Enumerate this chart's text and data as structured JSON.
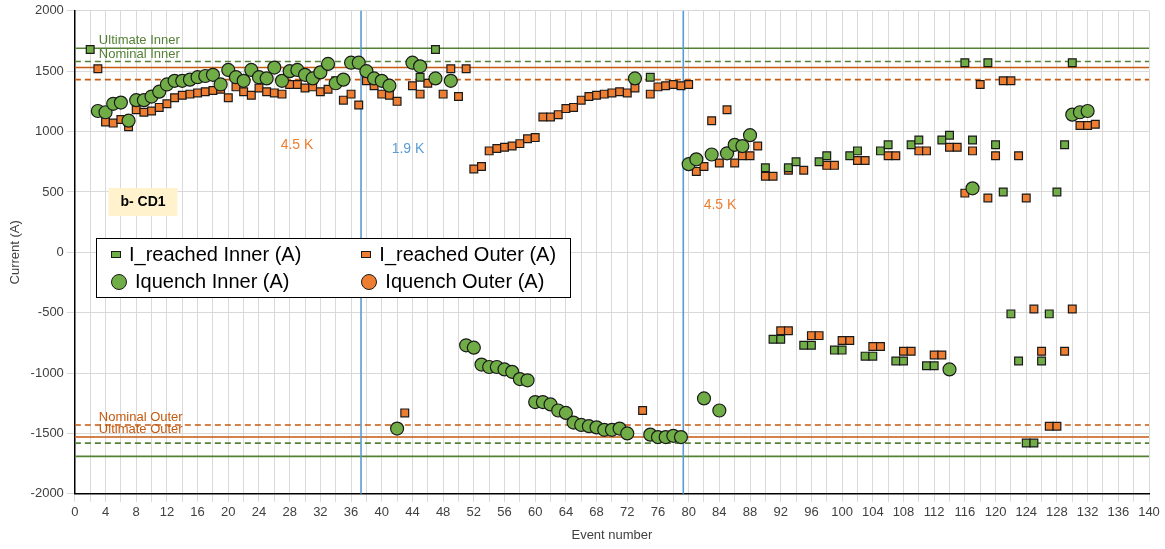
{
  "chart_data": {
    "type": "scatter",
    "xlabel": "Event number",
    "ylabel": "Current (A)",
    "xlim": [
      0,
      140
    ],
    "ylim": [
      -2000,
      2000
    ],
    "xticks": [
      0,
      {
        "value": 2,
        "label": null
      },
      4,
      {
        "value": 6,
        "label": null
      },
      8,
      {
        "value": 10,
        "label": null
      },
      12,
      {
        "value": 14,
        "label": null
      },
      16,
      {
        "value": 18,
        "label": null
      },
      20,
      {
        "value": 22,
        "label": null
      },
      24,
      {
        "value": 26,
        "label": null
      },
      28,
      {
        "value": 30,
        "label": null
      },
      32,
      {
        "value": 34,
        "label": null
      },
      36,
      {
        "value": 38,
        "label": null
      },
      40,
      {
        "value": 42,
        "label": null
      },
      44,
      {
        "value": 46,
        "label": null
      },
      48,
      {
        "value": 50,
        "label": null
      },
      52,
      {
        "value": 54,
        "label": null
      },
      56,
      {
        "value": 58,
        "label": null
      },
      60,
      {
        "value": 62,
        "label": null
      },
      64,
      {
        "value": 66,
        "label": null
      },
      68,
      {
        "value": 70,
        "label": null
      },
      72,
      {
        "value": 74,
        "label": null
      },
      76,
      {
        "value": 78,
        "label": null
      },
      80,
      {
        "value": 82,
        "label": null
      },
      84,
      {
        "value": 86,
        "label": null
      },
      88,
      {
        "value": 90,
        "label": null
      },
      92,
      {
        "value": 94,
        "label": null
      },
      96,
      {
        "value": 98,
        "label": null
      },
      100,
      {
        "value": 102,
        "label": null
      },
      104,
      {
        "value": 106,
        "label": null
      },
      108,
      {
        "value": 110,
        "label": null
      },
      112,
      {
        "value": 114,
        "label": null
      },
      116,
      {
        "value": 118,
        "label": null
      },
      120,
      {
        "value": 122,
        "label": null
      },
      124,
      {
        "value": 126,
        "label": null
      },
      128,
      {
        "value": 130,
        "label": null
      },
      132,
      {
        "value": 134,
        "label": null
      },
      136,
      {
        "value": 138,
        "label": null
      },
      140
    ],
    "yticks": [
      -2000,
      -1500,
      -1000,
      -500,
      0,
      500,
      1000,
      1500,
      2000
    ],
    "grid": true,
    "legend": "left",
    "series": [
      {
        "name": "I_reached Inner (A)",
        "color": "#70ad47",
        "marker": "square",
        "x": [
          2,
          45,
          47,
          75,
          90,
          91,
          92,
          93,
          94,
          95,
          96,
          97,
          98,
          99,
          100,
          101,
          102,
          103,
          104,
          105,
          106,
          107,
          108,
          109,
          110,
          111,
          112,
          113,
          114,
          116,
          117,
          119,
          120,
          121,
          122,
          123,
          124,
          125,
          126,
          127,
          128,
          129,
          130
        ],
        "values": [
          1680,
          1450,
          1680,
          1450,
          700,
          -720,
          -720,
          700,
          750,
          -770,
          -770,
          750,
          800,
          -810,
          -810,
          800,
          840,
          -860,
          -860,
          840,
          890,
          -900,
          -900,
          890,
          930,
          -940,
          -940,
          930,
          970,
          1570,
          930,
          1570,
          890,
          500,
          -510,
          -900,
          -1580,
          -1580,
          -900,
          -510,
          500,
          890,
          1570
        ]
      },
      {
        "name": "I_reached Outer (A)",
        "color": "#ed7d31",
        "marker": "square",
        "x": [
          3,
          4,
          5,
          6,
          7,
          8,
          9,
          10,
          11,
          12,
          13,
          14,
          15,
          16,
          17,
          18,
          19,
          20,
          21,
          22,
          23,
          24,
          25,
          26,
          27,
          28,
          29,
          30,
          31,
          32,
          33,
          34,
          35,
          36,
          37,
          38,
          39,
          40,
          41,
          42,
          43,
          44,
          45,
          46,
          48,
          49,
          50,
          51,
          52,
          53,
          54,
          55,
          56,
          57,
          58,
          59,
          60,
          61,
          62,
          63,
          64,
          65,
          66,
          67,
          68,
          69,
          70,
          71,
          72,
          73,
          74,
          75,
          76,
          77,
          78,
          79,
          80,
          81,
          82,
          83,
          84,
          85,
          86,
          87,
          88,
          89,
          90,
          91,
          92,
          93,
          93,
          95,
          96,
          97,
          98,
          99,
          100,
          101,
          102,
          103,
          104,
          105,
          106,
          107,
          108,
          109,
          110,
          111,
          112,
          113,
          114,
          115,
          116,
          117,
          118,
          119,
          120,
          121,
          122,
          123,
          124,
          125,
          126,
          127,
          128,
          129,
          130,
          131,
          132,
          133
        ],
        "values": [
          1520,
          1080,
          1070,
          1100,
          1040,
          1180,
          1160,
          1170,
          1200,
          1230,
          1280,
          1300,
          1310,
          1320,
          1330,
          1340,
          1350,
          1280,
          1370,
          1330,
          1300,
          1360,
          1330,
          1320,
          1310,
          1390,
          1390,
          1360,
          1370,
          1330,
          1350,
          1420,
          1260,
          1310,
          1220,
          1420,
          1380,
          1310,
          1300,
          1250,
          -1330,
          1380,
          1310,
          1400,
          1310,
          1520,
          1290,
          1520,
          690,
          710,
          840,
          860,
          870,
          880,
          900,
          940,
          950,
          1120,
          1120,
          1140,
          1190,
          1200,
          1260,
          1290,
          1300,
          1310,
          1320,
          1330,
          1320,
          1360,
          -1310,
          1310,
          1370,
          1380,
          1390,
          1380,
          1390,
          670,
          710,
          1090,
          740,
          1180,
          740,
          800,
          800,
          880,
          630,
          630,
          -650,
          -650,
          680,
          680,
          -690,
          -690,
          720,
          720,
          -730,
          -730,
          760,
          760,
          -780,
          -780,
          800,
          800,
          -820,
          -820,
          840,
          840,
          -850,
          -850,
          870,
          870,
          490,
          840,
          1390,
          450,
          800,
          1420,
          1420,
          800,
          450,
          -470,
          -820,
          -1440,
          -1440,
          -820,
          -470,
          1050,
          1050,
          1060
        ]
      },
      {
        "name": "Iquench Inner (A)",
        "color": "#70ad47",
        "marker": "circle",
        "x": [
          3,
          4,
          5,
          6,
          7,
          8,
          9,
          10,
          11,
          12,
          13,
          14,
          15,
          16,
          17,
          18,
          19,
          20,
          21,
          22,
          23,
          24,
          25,
          26,
          27,
          28,
          29,
          30,
          31,
          32,
          33,
          34,
          35,
          36,
          37,
          38,
          39,
          40,
          41,
          42,
          44,
          45,
          47,
          49,
          51,
          52,
          53,
          54,
          55,
          56,
          57,
          58,
          59,
          60,
          61,
          62,
          63,
          64,
          65,
          66,
          67,
          68,
          69,
          70,
          71,
          72,
          73,
          75,
          76,
          77,
          78,
          79,
          80,
          81,
          82,
          83,
          84,
          85,
          86,
          87,
          88,
          114,
          117,
          130,
          131,
          132
        ],
        "values": [
          1170,
          1160,
          1230,
          1240,
          1090,
          1260,
          1260,
          1290,
          1330,
          1390,
          1420,
          1420,
          1430,
          1450,
          1460,
          1470,
          1390,
          1510,
          1450,
          1420,
          1510,
          1450,
          1440,
          1530,
          1420,
          1500,
          1510,
          1470,
          1440,
          1490,
          1560,
          1400,
          1430,
          1570,
          1570,
          1500,
          1440,
          1420,
          1380,
          -1460,
          1570,
          1540,
          1440,
          1420,
          -770,
          -790,
          -930,
          -950,
          -950,
          -970,
          -990,
          -1050,
          -1060,
          -1240,
          -1240,
          -1260,
          -1310,
          -1330,
          -1410,
          -1430,
          -1440,
          -1450,
          -1470,
          -1470,
          -1460,
          -1500,
          1440,
          -1510,
          -1530,
          -1530,
          -1520,
          -1530,
          730,
          770,
          -1210,
          810,
          -1310,
          820,
          890,
          880,
          970,
          -970,
          530,
          1140,
          1160,
          1170
        ]
      },
      {
        "name": "Iquench Outer (A)",
        "color": "#ed7d31",
        "marker": "circle"
      }
    ],
    "ref_lines": [
      {
        "axis": "y",
        "value": 1690,
        "label": "Ultimate Inner",
        "color": "#548235",
        "line_style": "solid"
      },
      {
        "axis": "y",
        "value": 1580,
        "label": "Nominal Inner",
        "color": "#548235",
        "line_style": "dashed"
      },
      {
        "axis": "y",
        "value": 1530,
        "color": "#c55a11",
        "line_style": "solid"
      },
      {
        "axis": "y",
        "value": 1430,
        "color": "#c55a11",
        "line_style": "dashed"
      },
      {
        "axis": "y",
        "value": -1430,
        "label": "Nominal Outer",
        "color": "#c55a11",
        "line_style": "dashed"
      },
      {
        "axis": "y",
        "value": -1530,
        "label": "Ultimate Outer",
        "color": "#c55a11",
        "line_style": "solid"
      },
      {
        "axis": "y",
        "value": -1580,
        "color": "#548235",
        "line_style": "dashed"
      },
      {
        "axis": "y",
        "value": -1690,
        "color": "#548235",
        "line_style": "solid"
      },
      {
        "axis": "x",
        "value": 37.3,
        "color": "#5b9bd5",
        "line_style": "solid"
      },
      {
        "axis": "x",
        "value": 79.3,
        "color": "#5b9bd5",
        "line_style": "solid"
      }
    ],
    "annotations": [
      "4.5 K",
      "1.9 K",
      "4.5 K",
      "b- CD1"
    ]
  }
}
